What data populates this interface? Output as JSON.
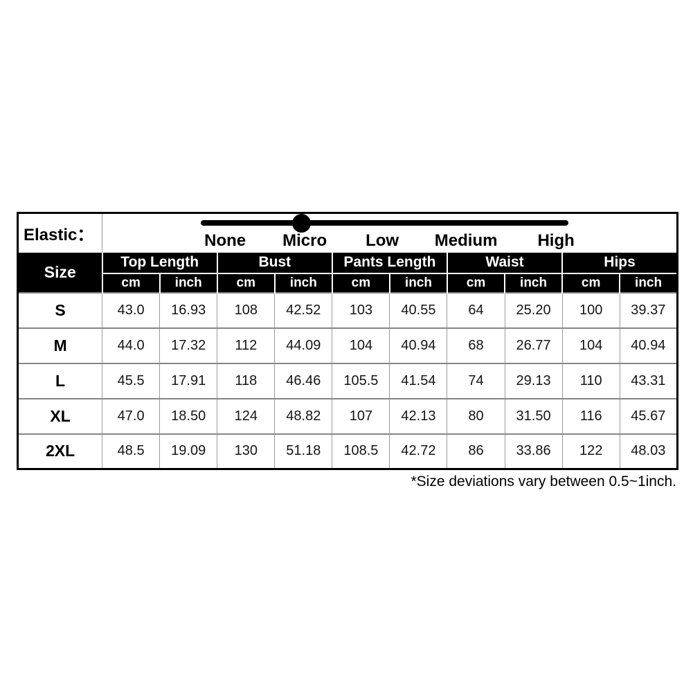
{
  "elastic": {
    "label": "Elastic：",
    "levels": [
      "None",
      "Micro",
      "Low",
      "Medium",
      "High"
    ],
    "selected": "Micro"
  },
  "chart_data": {
    "type": "table",
    "size_column_header": "Size",
    "group_headers": [
      "Top Length",
      "Bust",
      "Pants Length",
      "Waist",
      "Hips"
    ],
    "unit_headers": [
      "cm",
      "inch"
    ],
    "rows": [
      {
        "size": "S",
        "values": [
          "43.0",
          "16.93",
          "108",
          "42.52",
          "103",
          "40.55",
          "64",
          "25.20",
          "100",
          "39.37"
        ]
      },
      {
        "size": "M",
        "values": [
          "44.0",
          "17.32",
          "112",
          "44.09",
          "104",
          "40.94",
          "68",
          "26.77",
          "104",
          "40.94"
        ]
      },
      {
        "size": "L",
        "values": [
          "45.5",
          "17.91",
          "118",
          "46.46",
          "105.5",
          "41.54",
          "74",
          "29.13",
          "110",
          "43.31"
        ]
      },
      {
        "size": "XL",
        "values": [
          "47.0",
          "18.50",
          "124",
          "48.82",
          "107",
          "42.13",
          "80",
          "31.50",
          "116",
          "45.67"
        ]
      },
      {
        "size": "2XL",
        "values": [
          "48.5",
          "19.09",
          "130",
          "51.18",
          "108.5",
          "42.72",
          "86",
          "33.86",
          "122",
          "48.03"
        ]
      }
    ]
  },
  "footnote": "*Size deviations vary between 0.5~1inch.",
  "colors": {
    "background": "#ffffff",
    "header_bg": "#000000",
    "header_text": "#ffffff",
    "grid_line": "#858585",
    "slider": "#000000"
  }
}
